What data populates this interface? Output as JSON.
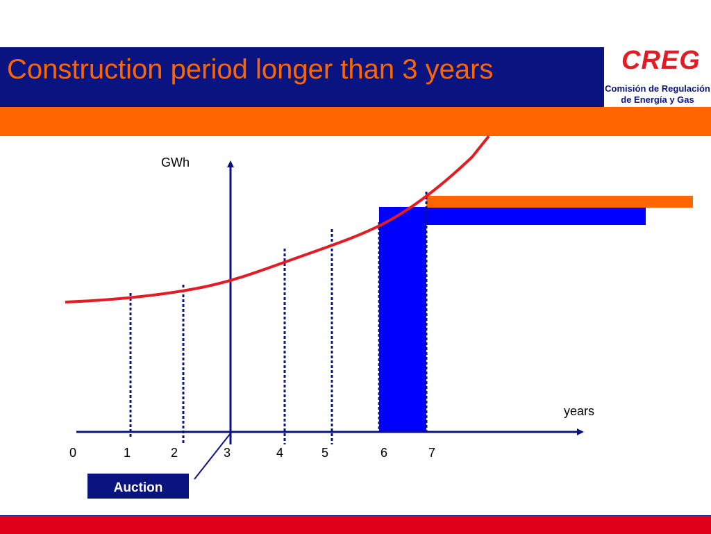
{
  "header": {
    "title": "Construction period longer than 3 years",
    "logo_mark": "CREG",
    "logo_line1": "Comisión de Regulación",
    "logo_line2": "de Energía y Gas"
  },
  "diagram": {
    "y_axis_label": "GWh",
    "x_axis_label": "years",
    "x_ticks": [
      "0",
      "1",
      "2",
      "3",
      "4",
      "5",
      "6",
      "7"
    ],
    "auction_label": "Auction"
  },
  "colors": {
    "navy": "#0a1480",
    "orange": "#ff6600",
    "red_curve": "#e31b23",
    "blue_bar": "#0000ff",
    "footer_red": "#e0001a"
  }
}
